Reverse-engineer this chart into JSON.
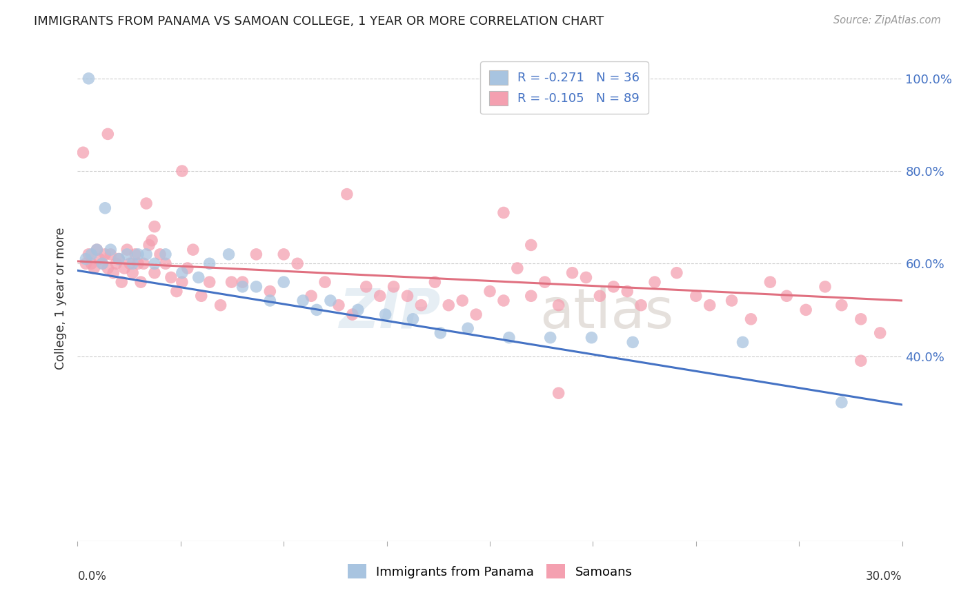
{
  "title": "IMMIGRANTS FROM PANAMA VS SAMOAN COLLEGE, 1 YEAR OR MORE CORRELATION CHART",
  "source": "Source: ZipAtlas.com",
  "ylabel": "College, 1 year or more",
  "legend_blue_label": "Immigrants from Panama",
  "legend_pink_label": "Samoans",
  "R_blue": -0.271,
  "N_blue": 36,
  "R_pink": -0.105,
  "N_pink": 89,
  "watermark_zip": "ZIP",
  "watermark_atlas": "atlas",
  "blue_color": "#a8c4e0",
  "pink_color": "#f4a0b0",
  "blue_line_color": "#4472c4",
  "pink_line_color": "#e07080",
  "xlim": [
    0.0,
    0.3
  ],
  "ylim": [
    0.0,
    1.05
  ],
  "ytick_vals": [
    0.4,
    0.6,
    0.8,
    1.0
  ],
  "ytick_labels": [
    "40.0%",
    "60.0%",
    "80.0%",
    "100.0%"
  ],
  "blue_x": [
    0.004,
    0.01,
    0.012,
    0.015,
    0.018,
    0.02,
    0.007,
    0.009,
    0.003,
    0.005,
    0.022,
    0.025,
    0.028,
    0.032,
    0.038,
    0.044,
    0.048,
    0.055,
    0.06,
    0.065,
    0.07,
    0.075,
    0.082,
    0.087,
    0.092,
    0.102,
    0.112,
    0.122,
    0.132,
    0.142,
    0.157,
    0.172,
    0.187,
    0.202,
    0.242,
    0.278
  ],
  "blue_y": [
    1.0,
    0.72,
    0.63,
    0.61,
    0.62,
    0.6,
    0.63,
    0.6,
    0.61,
    0.62,
    0.62,
    0.62,
    0.6,
    0.62,
    0.58,
    0.57,
    0.6,
    0.62,
    0.55,
    0.55,
    0.52,
    0.56,
    0.52,
    0.5,
    0.52,
    0.5,
    0.49,
    0.48,
    0.45,
    0.46,
    0.44,
    0.44,
    0.44,
    0.43,
    0.43,
    0.3
  ],
  "pink_x": [
    0.003,
    0.004,
    0.005,
    0.006,
    0.007,
    0.008,
    0.009,
    0.01,
    0.011,
    0.012,
    0.013,
    0.014,
    0.015,
    0.016,
    0.017,
    0.018,
    0.019,
    0.02,
    0.021,
    0.022,
    0.023,
    0.024,
    0.025,
    0.026,
    0.027,
    0.028,
    0.03,
    0.032,
    0.034,
    0.036,
    0.038,
    0.04,
    0.042,
    0.045,
    0.048,
    0.052,
    0.056,
    0.06,
    0.065,
    0.07,
    0.075,
    0.08,
    0.085,
    0.09,
    0.095,
    0.1,
    0.105,
    0.11,
    0.115,
    0.12,
    0.125,
    0.13,
    0.135,
    0.14,
    0.145,
    0.15,
    0.155,
    0.16,
    0.165,
    0.17,
    0.175,
    0.18,
    0.185,
    0.19,
    0.195,
    0.2,
    0.205,
    0.21,
    0.218,
    0.225,
    0.23,
    0.238,
    0.245,
    0.252,
    0.258,
    0.265,
    0.272,
    0.278,
    0.285,
    0.292,
    0.002,
    0.011,
    0.028,
    0.038,
    0.098,
    0.155,
    0.165,
    0.175,
    0.285
  ],
  "pink_y": [
    0.6,
    0.62,
    0.6,
    0.59,
    0.63,
    0.61,
    0.6,
    0.62,
    0.59,
    0.62,
    0.58,
    0.6,
    0.61,
    0.56,
    0.59,
    0.63,
    0.6,
    0.58,
    0.62,
    0.6,
    0.56,
    0.6,
    0.73,
    0.64,
    0.65,
    0.58,
    0.62,
    0.6,
    0.57,
    0.54,
    0.56,
    0.59,
    0.63,
    0.53,
    0.56,
    0.51,
    0.56,
    0.56,
    0.62,
    0.54,
    0.62,
    0.6,
    0.53,
    0.56,
    0.51,
    0.49,
    0.55,
    0.53,
    0.55,
    0.53,
    0.51,
    0.56,
    0.51,
    0.52,
    0.49,
    0.54,
    0.52,
    0.59,
    0.53,
    0.56,
    0.51,
    0.58,
    0.57,
    0.53,
    0.55,
    0.54,
    0.51,
    0.56,
    0.58,
    0.53,
    0.51,
    0.52,
    0.48,
    0.56,
    0.53,
    0.5,
    0.55,
    0.51,
    0.48,
    0.45,
    0.84,
    0.88,
    0.68,
    0.8,
    0.75,
    0.71,
    0.64,
    0.32,
    0.39
  ]
}
